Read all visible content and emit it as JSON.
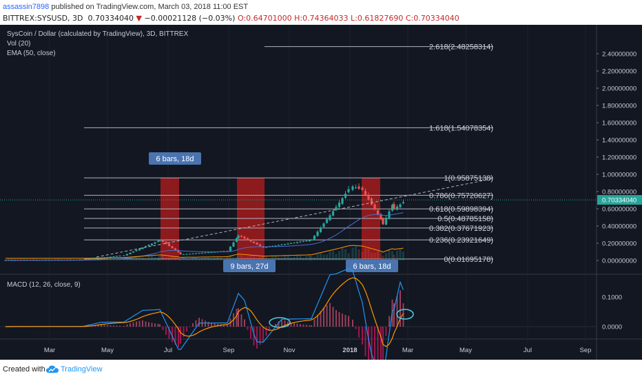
{
  "header": {
    "username": "assassin7898",
    "published_text": " published on TradingView.com, March 03, 2018 11:00 EST",
    "symbol": "BITTREX:SYSUSD, 3D",
    "last": "0.70334040",
    "change": "−0.00021128 (−0.03%)",
    "ohlc": "O:0.64701000 H:0.74364033 L:0.61827690 C:0.70334040"
  },
  "legend": {
    "title": "SysCoin / Dollar (calculated by TradingView), 3D, BITTREX",
    "vol": "Vol (20)",
    "ema": "EMA (50, close)",
    "macd": "MACD (12, 26, close, 9)"
  },
  "colors": {
    "background": "#131722",
    "up": "#26a69a",
    "down": "#ef5350",
    "macd_line": "#2196f3",
    "signal_line": "#ff9800",
    "highlight": "#b71c1c",
    "price_tag": "#26a69a",
    "ema": "#4a6fd0"
  },
  "price_axis": [
    "2.40000000",
    "2.20000000",
    "2.00000000",
    "1.80000000",
    "1.60000000",
    "1.40000000",
    "1.20000000",
    "1.00000000",
    "0.80000000",
    "0.60000000",
    "0.40000000",
    "0.20000000",
    "0.00000000"
  ],
  "current_price_tag": "0.70334040",
  "macd_axis": [
    "0.1000",
    "0.0000"
  ],
  "time_axis": [
    "Mar",
    "May",
    "Jul",
    "Sep",
    "Nov",
    "2018",
    "Mar",
    "May",
    "Jul",
    "Sep"
  ],
  "fib_levels": [
    {
      "label": "2.618(2.48258314)",
      "value": 2.48258314
    },
    {
      "label": "1.618(1.54078354)",
      "value": 1.54078354
    },
    {
      "label": "1(0.95875138)",
      "value": 0.95875138
    },
    {
      "label": "0.786(0.75720627)",
      "value": 0.75720627
    },
    {
      "label": "0.618(0.59898394)",
      "value": 0.59898394
    },
    {
      "label": "0.5(0.48785158)",
      "value": 0.48785158
    },
    {
      "label": "0.382(0.37671923)",
      "value": 0.37671923
    },
    {
      "label": "0.236(0.23921649)",
      "value": 0.23921649
    },
    {
      "label": "0(0.01695178)",
      "value": 0.01695178
    }
  ],
  "range_labels": [
    "6 bars, 18d",
    "9 bars, 27d",
    "6 bars, 18d"
  ],
  "footer": {
    "created_with": "Created with",
    "brand": "TradingView"
  }
}
